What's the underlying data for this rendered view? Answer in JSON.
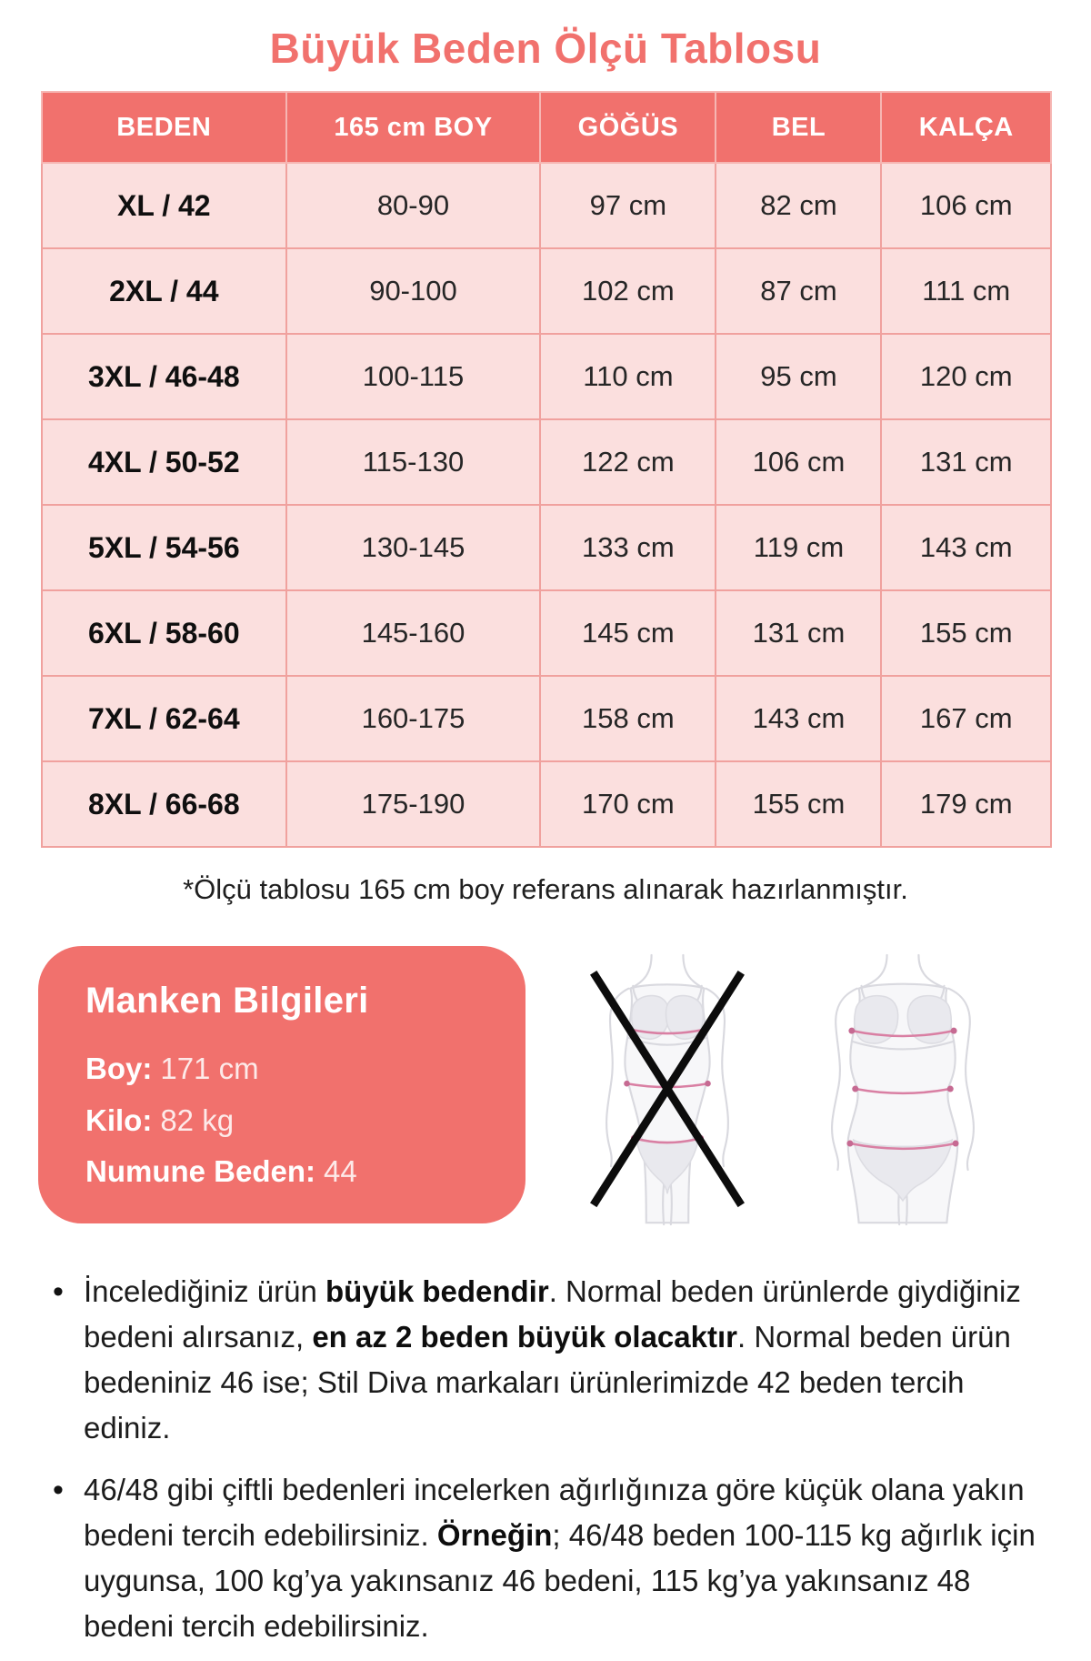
{
  "title": "Büyük Beden Ölçü Tablosu",
  "table": {
    "headers": [
      "BEDEN",
      "165 cm BOY",
      "GÖĞÜS",
      "BEL",
      "KALÇA"
    ],
    "rows": [
      [
        "XL / 42",
        "80-90",
        "97 cm",
        "82 cm",
        "106 cm"
      ],
      [
        "2XL / 44",
        "90-100",
        "102 cm",
        "87 cm",
        "111 cm"
      ],
      [
        "3XL / 46-48",
        "100-115",
        "110 cm",
        "95 cm",
        "120 cm"
      ],
      [
        "4XL / 50-52",
        "115-130",
        "122 cm",
        "106 cm",
        "131 cm"
      ],
      [
        "5XL / 54-56",
        "130-145",
        "133 cm",
        "119 cm",
        "143 cm"
      ],
      [
        "6XL / 58-60",
        "145-160",
        "145 cm",
        "131 cm",
        "155 cm"
      ],
      [
        "7XL / 62-64",
        "160-175",
        "158 cm",
        "143 cm",
        "167 cm"
      ],
      [
        "8XL / 66-68",
        "175-190",
        "170 cm",
        "155 cm",
        "179 cm"
      ]
    ]
  },
  "footnote": "*Ölçü tablosu 165 cm boy referans alınarak hazırlanmıştır.",
  "model_info": {
    "title": "Manken Bilgileri",
    "fields": [
      {
        "label": "Boy",
        "value": "171 cm"
      },
      {
        "label": "Kilo",
        "value": "82 kg"
      },
      {
        "label": "Numune Beden",
        "value": "44"
      }
    ]
  },
  "figures": {
    "left_icon": "slim-body-crossed-icon",
    "right_icon": "plus-body-icon"
  },
  "notes": [
    {
      "segments": [
        {
          "text": "İncelediğiniz ürün ",
          "bold": false
        },
        {
          "text": "büyük bedendir",
          "bold": true
        },
        {
          "text": ". Normal beden ürünlerde giydiğiniz bedeni alırsanız, ",
          "bold": false
        },
        {
          "text": "en az 2 beden büyük olacaktır",
          "bold": true
        },
        {
          "text": ". Normal beden ürün bedeniniz 46 ise; Stil Diva markaları ürünlerimizde 42 beden tercih ediniz.",
          "bold": false
        }
      ]
    },
    {
      "segments": [
        {
          "text": "46/48 gibi çiftli bedenleri incelerken ağırlığınıza göre küçük olana yakın bedeni tercih edebilirsiniz. ",
          "bold": false
        },
        {
          "text": "Örneğin",
          "bold": true
        },
        {
          "text": "; 46/48 beden 100-115 kg ağırlık için uygunsa, 100 kg’ya yakınsanız 46 bedeni, 115 kg’ya yakınsanız 48 bedeni tercih edebilirsiniz.",
          "bold": false
        }
      ]
    }
  ],
  "colors": {
    "accent_coral": "#f1716d",
    "cell_pink": "#fbdfde",
    "table_border": "#f0a19e",
    "measure_line_pink": "#d97fa3",
    "text_dark": "#1c1c1c"
  }
}
